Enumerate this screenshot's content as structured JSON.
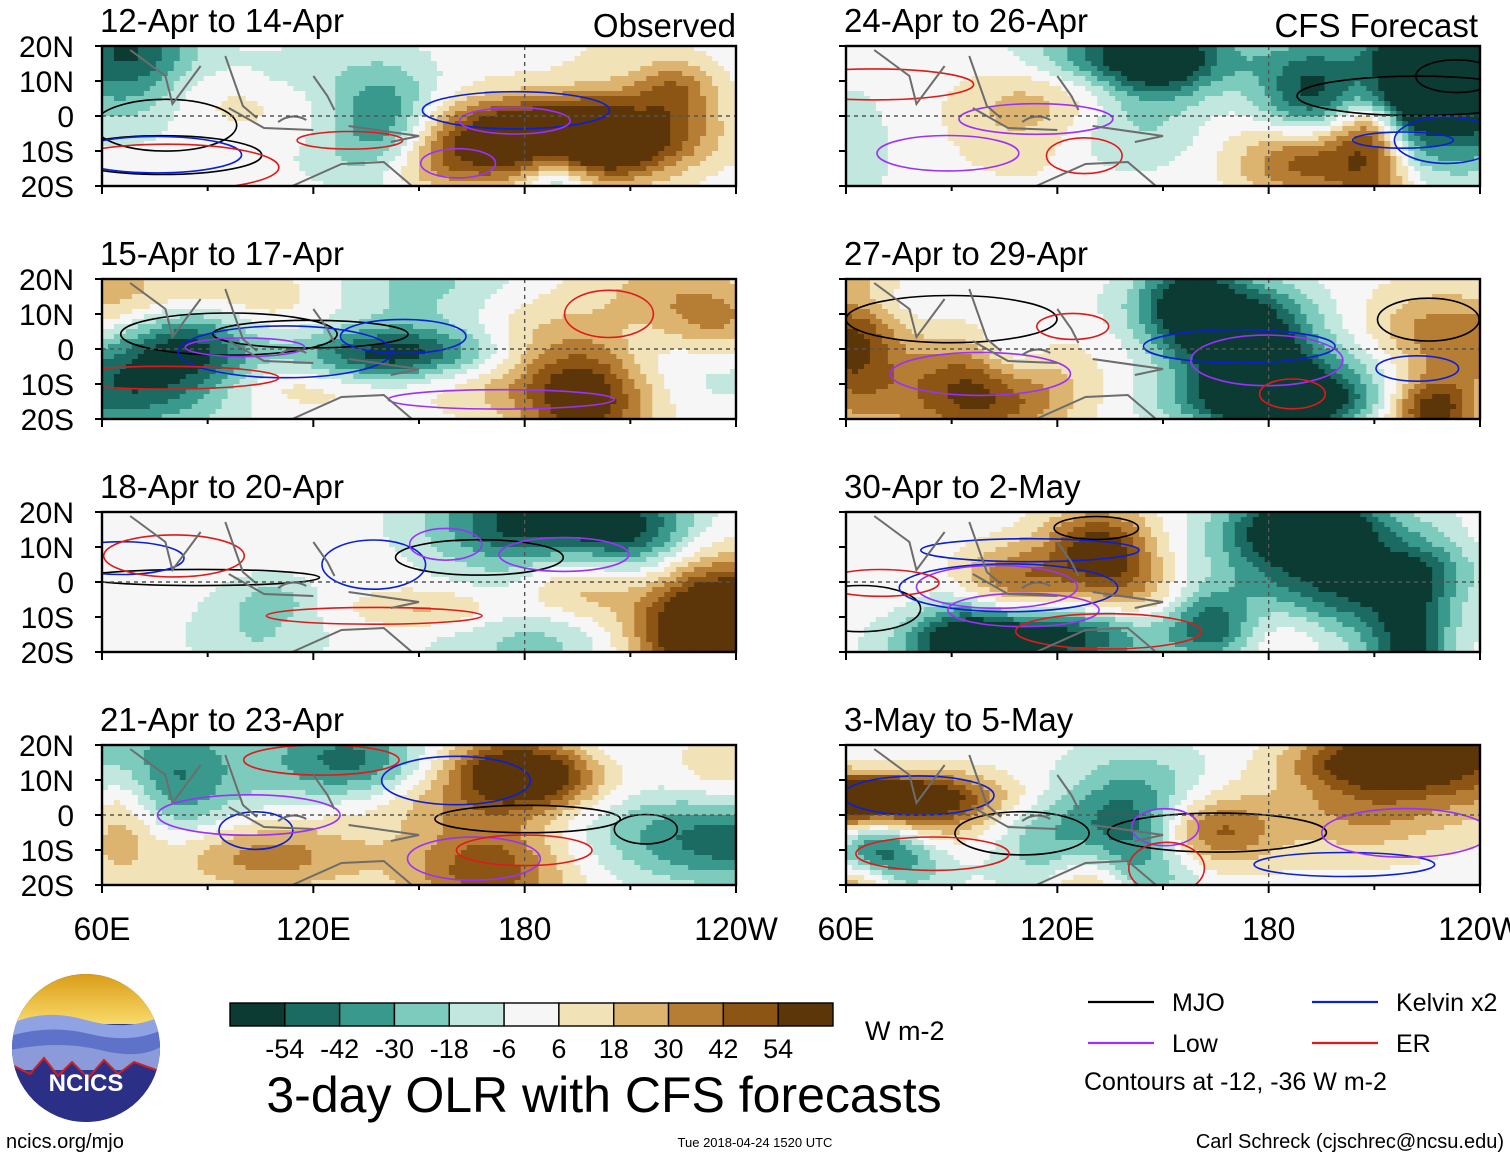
{
  "figure": {
    "title": "3-day OLR with CFS forecasts",
    "left_header": "Observed",
    "right_header": "CFS Forecast",
    "units": "W m-2",
    "contour_note": "Contours at -12, -36 W m-2",
    "footer_left": "ncics.org/mjo",
    "footer_center": "Tue 2018-04-24 1520 UTC",
    "footer_right": "Carl Schreck (cjschrec@ncsu.edu)",
    "logo_text": "NCICS"
  },
  "chart_data": {
    "type": "heatmap",
    "variable": "3-day OLR anomaly",
    "lon_range": [
      60,
      240
    ],
    "lat_range": [
      -20,
      20
    ],
    "x_ticks": [
      "60E",
      "120E",
      "180",
      "120W"
    ],
    "y_ticks": [
      "20N",
      "10N",
      "0",
      "10S",
      "20S"
    ],
    "colorbar": {
      "levels": [
        -54,
        -42,
        -30,
        -18,
        -6,
        6,
        18,
        30,
        42,
        54
      ],
      "tick_labels": [
        "-54",
        "-42",
        "-30",
        "-18",
        "-6",
        "6",
        "18",
        "30",
        "42",
        "54"
      ],
      "colors": [
        "#0b3b33",
        "#1b6b62",
        "#3a998d",
        "#7ccbbd",
        "#c2e7df",
        "#f6f6f6",
        "#f2e2b8",
        "#dcb46f",
        "#b67d34",
        "#8c5514",
        "#5c3508"
      ]
    },
    "contour_levels": [
      -12,
      -36
    ],
    "legend": [
      {
        "name": "MJO",
        "color": "#000000"
      },
      {
        "name": "Kelvin x2",
        "color": "#0a1fd8"
      },
      {
        "name": "Low",
        "color": "#9b30ff"
      },
      {
        "name": "ER",
        "color": "#e01a1a"
      }
    ],
    "panels": [
      {
        "id": "obs1",
        "column": "Observed",
        "title": "12-Apr to 14-Apr",
        "seed": 11
      },
      {
        "id": "obs2",
        "column": "Observed",
        "title": "15-Apr to 17-Apr",
        "seed": 23
      },
      {
        "id": "obs3",
        "column": "Observed",
        "title": "18-Apr to 20-Apr",
        "seed": 37
      },
      {
        "id": "obs4",
        "column": "Observed",
        "title": "21-Apr to 23-Apr",
        "seed": 41
      },
      {
        "id": "fc1",
        "column": "CFS Forecast",
        "title": "24-Apr to 26-Apr",
        "seed": 53
      },
      {
        "id": "fc2",
        "column": "CFS Forecast",
        "title": "27-Apr to 29-Apr",
        "seed": 67
      },
      {
        "id": "fc3",
        "column": "CFS Forecast",
        "title": "30-Apr to 2-May",
        "seed": 79
      },
      {
        "id": "fc4",
        "column": "CFS Forecast",
        "title": "3-May to 5-May",
        "seed": 89
      }
    ]
  }
}
